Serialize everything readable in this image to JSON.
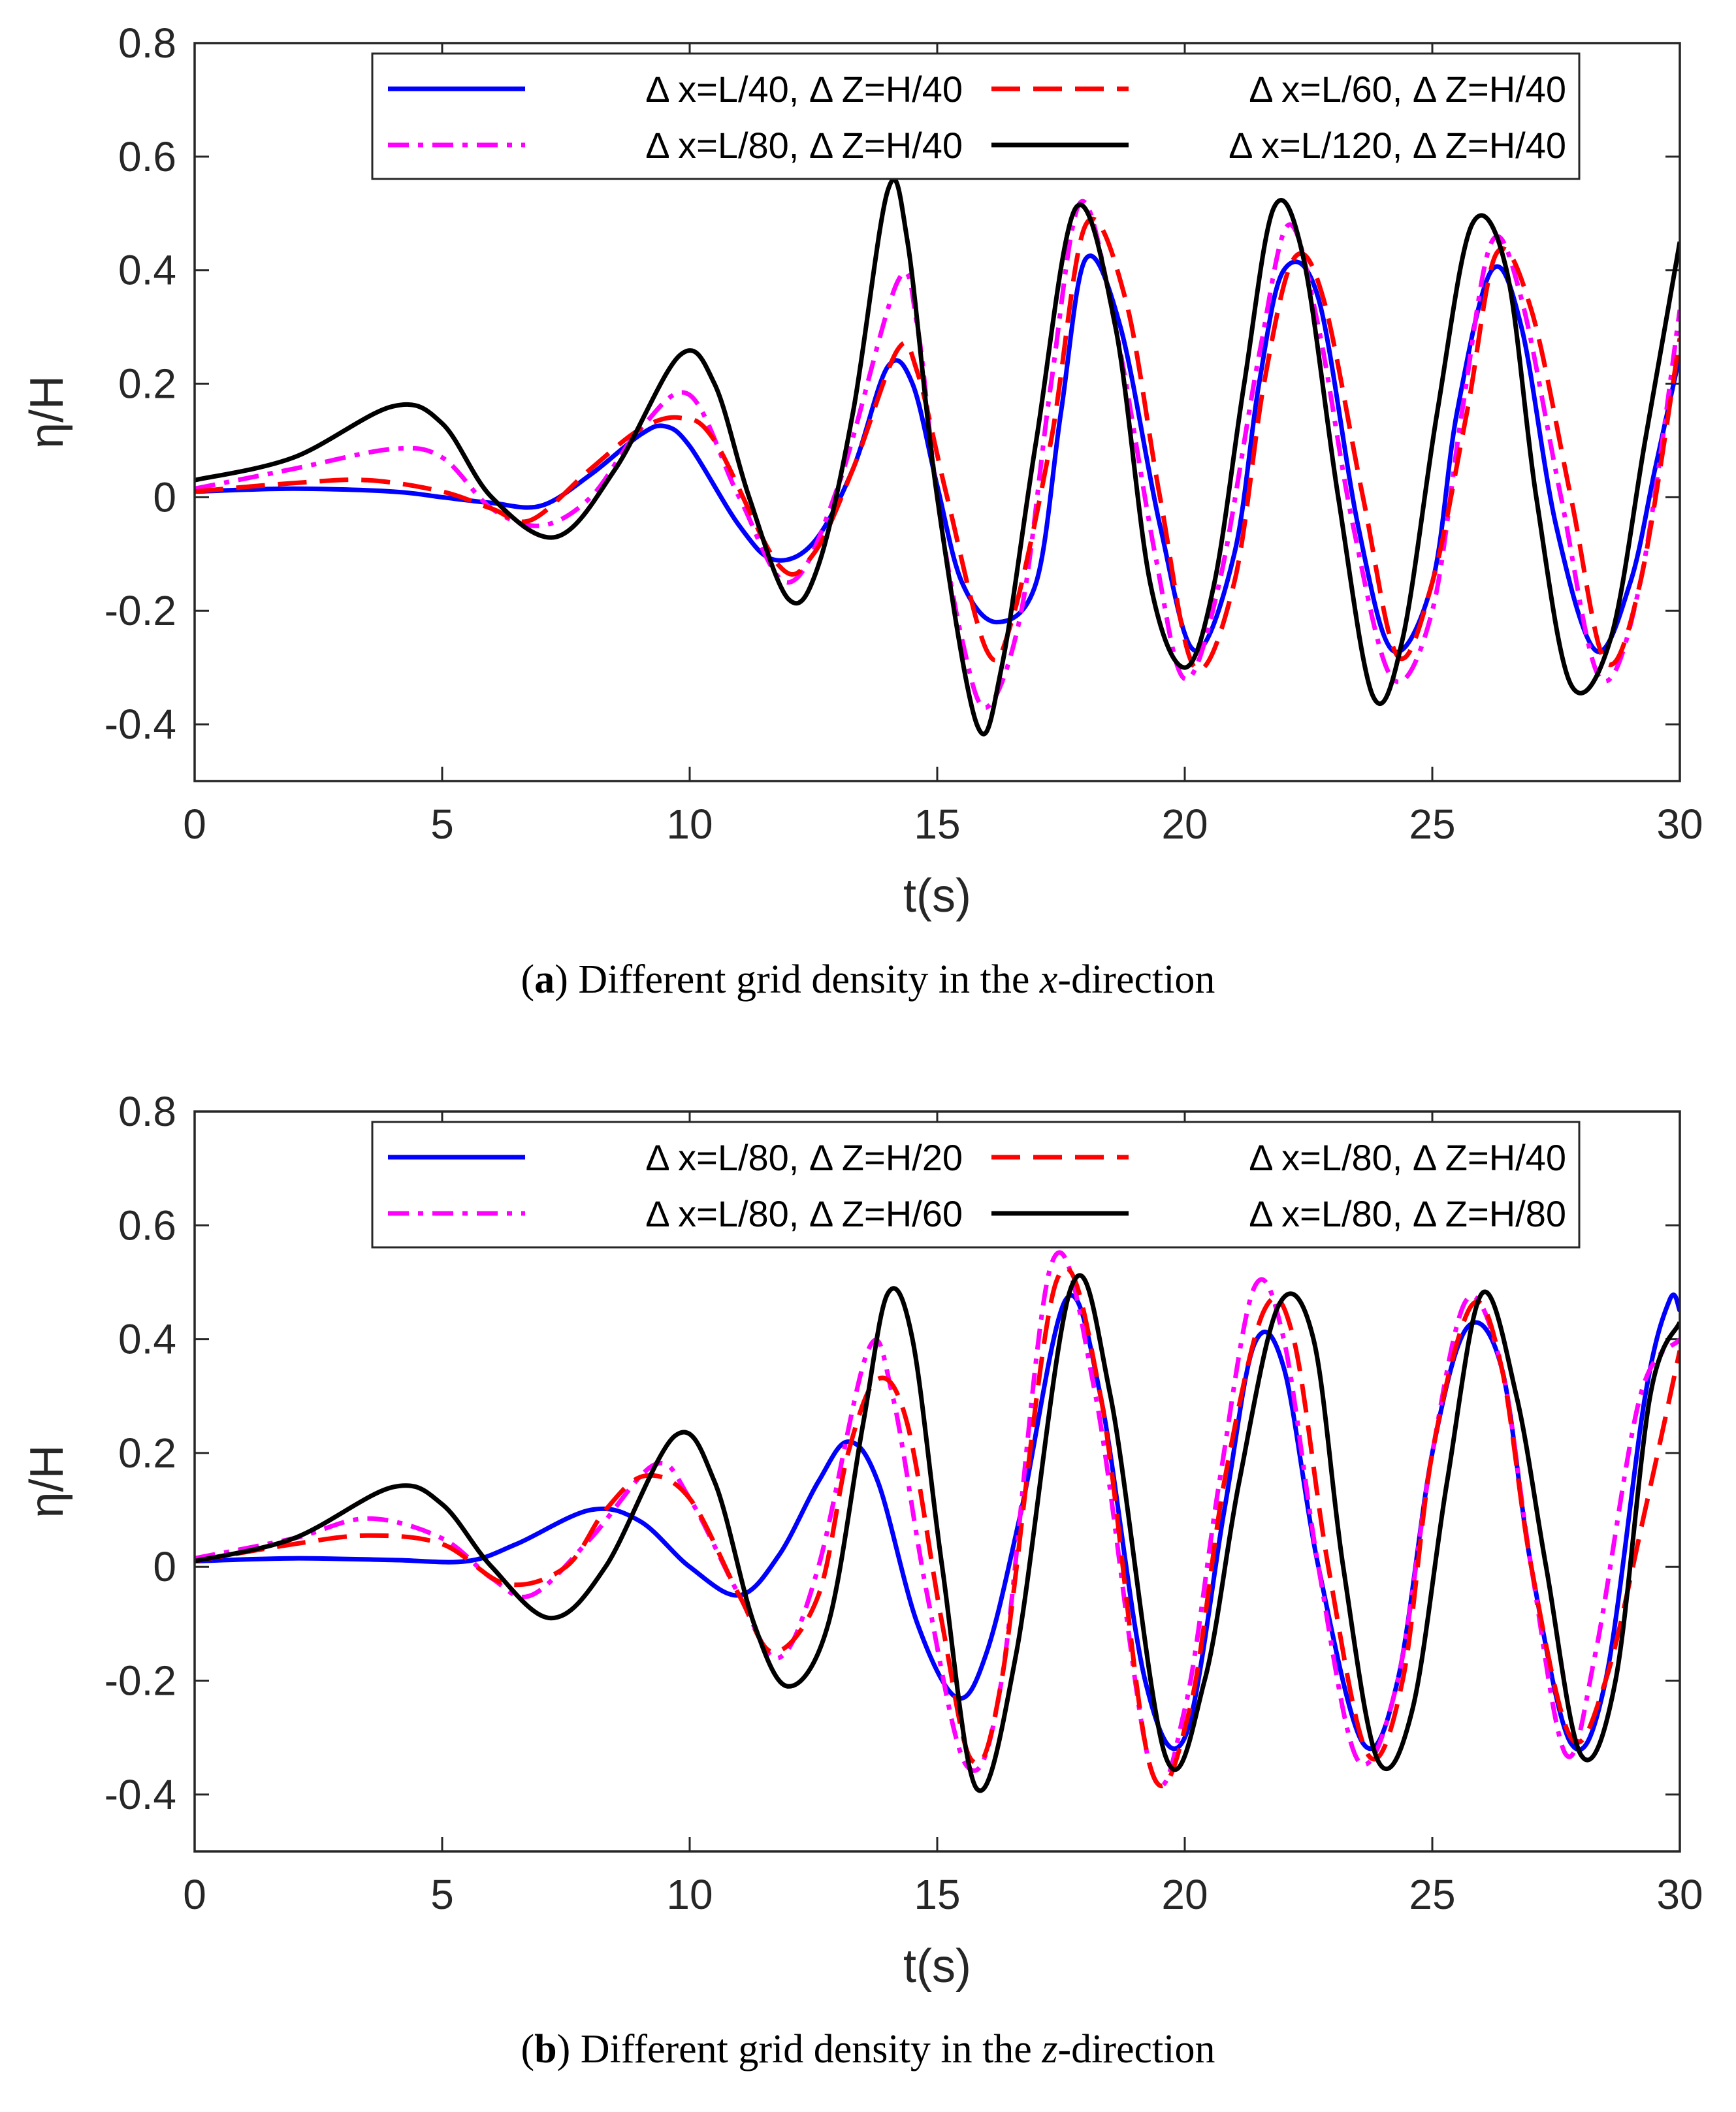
{
  "chart_data": [
    {
      "type": "line",
      "panel": "a",
      "caption_label": "a",
      "caption_pre": "Different grid density in the ",
      "caption_var": "x",
      "caption_post": "-direction",
      "xlabel": "t(s)",
      "ylabel": "η/H",
      "xlim": [
        0,
        30
      ],
      "ylim": [
        -0.5,
        0.8
      ],
      "xticks": [
        "0",
        "5",
        "10",
        "15",
        "20",
        "25",
        "30"
      ],
      "yticks": [
        "-0.4",
        "-0.2",
        "0",
        "0.2",
        "0.4",
        "0.6",
        "0.8"
      ],
      "legend_position": "top-right",
      "series": [
        {
          "name": "Δ x=L/40, Δ Z=H/40",
          "color": "#0000ff",
          "style": "solid",
          "x": [
            0,
            2,
            4,
            5,
            6,
            7,
            8,
            9,
            9.5,
            10,
            11,
            11.7,
            12.5,
            13.3,
            14,
            14.5,
            15,
            15.5,
            16.2,
            17,
            17.5,
            18,
            18.7,
            19.5,
            20.2,
            21,
            21.5,
            22,
            22.7,
            23.5,
            24.2,
            25,
            25.5,
            26.2,
            26.8,
            27.5,
            28.3,
            29,
            29.5,
            30
          ],
          "y": [
            0.01,
            0.015,
            0.01,
            0,
            -0.01,
            -0.015,
            0.04,
            0.11,
            0.125,
            0.09,
            -0.05,
            -0.11,
            -0.08,
            0.05,
            0.23,
            0.2,
            0.02,
            -0.15,
            -0.22,
            -0.15,
            0.15,
            0.42,
            0.3,
            -0.05,
            -0.27,
            -0.1,
            0.2,
            0.4,
            0.35,
            -0.05,
            -0.27,
            -0.15,
            0.15,
            0.4,
            0.3,
            -0.05,
            -0.27,
            -0.15,
            0.05,
            0.25
          ]
        },
        {
          "name": "Δ x=L/80, Δ Z=H/40",
          "color": "#ff00ff",
          "style": "dashdot",
          "x": [
            0,
            2,
            4,
            5,
            6,
            7,
            8,
            9,
            10,
            11,
            12,
            13,
            14.2,
            14.6,
            15,
            15.5,
            16,
            16.7,
            17.3,
            17.9,
            18.6,
            19.4,
            20,
            20.7,
            21.5,
            22.1,
            22.7,
            23.4,
            24.2,
            25,
            25.6,
            26.2,
            26.8,
            27.6,
            28.4,
            29.2,
            30
          ],
          "y": [
            0.015,
            0.05,
            0.085,
            0.07,
            -0.02,
            -0.05,
            0.0,
            0.12,
            0.18,
            0.0,
            -0.15,
            0.02,
            0.38,
            0.3,
            0.0,
            -0.25,
            -0.37,
            -0.2,
            0.2,
            0.52,
            0.3,
            -0.1,
            -0.32,
            -0.15,
            0.25,
            0.48,
            0.3,
            -0.05,
            -0.32,
            -0.2,
            0.15,
            0.45,
            0.35,
            0.0,
            -0.32,
            -0.15,
            0.33
          ]
        },
        {
          "name": "Δ x=L/60, Δ Z=H/40",
          "color": "#ff0000",
          "style": "dashed",
          "x": [
            0,
            2,
            3.5,
            5,
            6,
            6.8,
            8,
            9,
            9.8,
            10.5,
            11.8,
            12.5,
            13.3,
            14.2,
            14.6,
            15.2,
            16,
            16.5,
            17.3,
            18,
            18.8,
            19.5,
            20.2,
            21,
            21.6,
            22.2,
            22.8,
            23.6,
            24.3,
            25,
            25.7,
            26.3,
            27,
            27.8,
            28.5,
            29.2,
            30
          ],
          "y": [
            0.01,
            0.025,
            0.03,
            0.01,
            -0.02,
            -0.04,
            0.05,
            0.12,
            0.14,
            0.1,
            -0.12,
            -0.1,
            0.05,
            0.26,
            0.22,
            0.0,
            -0.27,
            -0.22,
            0.1,
            0.48,
            0.35,
            0.0,
            -0.3,
            -0.15,
            0.2,
            0.42,
            0.35,
            0.0,
            -0.28,
            -0.15,
            0.15,
            0.43,
            0.33,
            0.0,
            -0.29,
            -0.15,
            0.28
          ]
        },
        {
          "name": "Δ x=L/120, Δ Z=H/40",
          "color": "#000000",
          "style": "solid",
          "x": [
            0,
            2,
            4,
            5,
            6,
            7.3,
            8.5,
            9.8,
            10.5,
            11.2,
            12,
            12.6,
            13.3,
            14,
            14.4,
            15,
            15.8,
            16.3,
            17,
            17.8,
            18.6,
            19.3,
            20,
            20.6,
            21.2,
            21.8,
            22.4,
            23.1,
            23.8,
            24.4,
            25.1,
            25.8,
            26.5,
            27.1,
            27.8,
            28.6,
            29.3,
            30
          ],
          "y": [
            0.03,
            0.07,
            0.16,
            0.13,
            0.0,
            -0.07,
            0.05,
            0.25,
            0.2,
            0.0,
            -0.18,
            -0.12,
            0.15,
            0.54,
            0.45,
            0.0,
            -0.4,
            -0.3,
            0.1,
            0.51,
            0.3,
            -0.15,
            -0.3,
            -0.15,
            0.2,
            0.51,
            0.42,
            0.0,
            -0.35,
            -0.25,
            0.15,
            0.48,
            0.4,
            0.0,
            -0.33,
            -0.25,
            0.1,
            0.45
          ]
        }
      ]
    },
    {
      "type": "line",
      "panel": "b",
      "caption_label": "b",
      "caption_pre": "Different grid density in the ",
      "caption_var": "z",
      "caption_post": "-direction",
      "xlabel": "t(s)",
      "ylabel": "η/H",
      "xlim": [
        0,
        30
      ],
      "ylim": [
        -0.5,
        0.8
      ],
      "xticks": [
        "0",
        "5",
        "10",
        "15",
        "20",
        "25",
        "30"
      ],
      "yticks": [
        "-0.4",
        "-0.2",
        "0",
        "0.2",
        "0.4",
        "0.6",
        "0.8"
      ],
      "legend_position": "top-right",
      "series": [
        {
          "name": "Δ x=L/80, Δ Z=H/20",
          "color": "#0000ff",
          "style": "solid",
          "x": [
            0,
            2,
            4,
            5.5,
            6.5,
            8,
            9,
            10,
            11,
            11.8,
            12.6,
            13.2,
            13.8,
            14.6,
            15.4,
            16,
            16.7,
            17.6,
            18.3,
            19.2,
            20,
            20.8,
            21.4,
            22,
            22.7,
            23.6,
            24.3,
            25,
            25.7,
            26.4,
            27,
            27.8,
            28.5,
            29.3,
            29.8,
            30
          ],
          "y": [
            0.01,
            0.015,
            0.012,
            0.01,
            0.04,
            0.1,
            0.08,
            0.0,
            -0.05,
            0.02,
            0.15,
            0.22,
            0.15,
            -0.1,
            -0.23,
            -0.15,
            0.1,
            0.47,
            0.3,
            -0.2,
            -0.3,
            0.1,
            0.39,
            0.35,
            0.0,
            -0.31,
            -0.2,
            0.2,
            0.42,
            0.35,
            0.0,
            -0.31,
            -0.2,
            0.3,
            0.47,
            0.45
          ]
        },
        {
          "name": "Δ x=L/80, Δ Z=H/60",
          "color": "#ff00ff",
          "style": "dashdot",
          "x": [
            0,
            2,
            3.5,
            5,
            6,
            6.8,
            8,
            9.3,
            10,
            11,
            11.8,
            12.6,
            13.6,
            14.1,
            14.8,
            15.6,
            16.3,
            17.3,
            18.2,
            19.3,
            20,
            20.7,
            21.4,
            22,
            22.7,
            23.5,
            24.3,
            25,
            25.7,
            26.4,
            27,
            27.7,
            28.3,
            29.2,
            30
          ],
          "y": [
            0.015,
            0.05,
            0.085,
            0.05,
            -0.02,
            -0.05,
            0.05,
            0.18,
            0.12,
            -0.05,
            -0.16,
            0.0,
            0.38,
            0.3,
            -0.05,
            -0.35,
            -0.2,
            0.53,
            0.3,
            -0.35,
            -0.25,
            0.15,
            0.49,
            0.4,
            0.0,
            -0.34,
            -0.2,
            0.2,
            0.47,
            0.35,
            0.0,
            -0.33,
            -0.15,
            0.3,
            0.4
          ]
        },
        {
          "name": "Δ x=L/80, Δ Z=H/40",
          "color": "#ff0000",
          "style": "dashed",
          "x": [
            0,
            2,
            3.5,
            5,
            6.3,
            7.5,
            8.3,
            9.1,
            10,
            11,
            11.7,
            12.6,
            13.2,
            13.8,
            14.4,
            15.1,
            15.7,
            16.3,
            17.4,
            18.3,
            19.3,
            20.1,
            20.8,
            21.6,
            22.2,
            22.9,
            23.7,
            24.4,
            25,
            25.8,
            26.4,
            27,
            27.8,
            28.5,
            29.3,
            30
          ],
          "y": [
            0.01,
            0.04,
            0.055,
            0.04,
            -0.03,
            0.0,
            0.1,
            0.16,
            0.12,
            -0.05,
            -0.15,
            -0.05,
            0.2,
            0.33,
            0.25,
            -0.1,
            -0.34,
            -0.2,
            0.5,
            0.3,
            -0.35,
            -0.25,
            0.15,
            0.45,
            0.4,
            0.0,
            -0.33,
            -0.2,
            0.2,
            0.46,
            0.35,
            0.0,
            -0.3,
            -0.2,
            0.1,
            0.38
          ]
        },
        {
          "name": "Δ x=L/80, Δ Z=H/80",
          "color": "#000000",
          "style": "solid",
          "x": [
            0,
            2,
            4,
            5,
            6,
            7.2,
            8.3,
            9.7,
            10.5,
            11.3,
            12,
            12.8,
            13.5,
            14,
            14.5,
            15.1,
            15.8,
            16.6,
            17.7,
            18.5,
            19.6,
            20.4,
            21.1,
            21.9,
            22.6,
            23.2,
            23.9,
            24.6,
            25.3,
            26,
            26.7,
            27.3,
            28,
            28.7,
            29.4,
            30
          ],
          "y": [
            0.01,
            0.05,
            0.14,
            0.11,
            0.0,
            -0.09,
            0.0,
            0.23,
            0.15,
            -0.1,
            -0.21,
            -0.1,
            0.25,
            0.48,
            0.4,
            0.0,
            -0.39,
            -0.15,
            0.49,
            0.3,
            -0.33,
            -0.2,
            0.15,
            0.46,
            0.4,
            0.0,
            -0.34,
            -0.25,
            0.15,
            0.48,
            0.3,
            0.0,
            -0.33,
            -0.2,
            0.3,
            0.43
          ]
        }
      ]
    }
  ]
}
